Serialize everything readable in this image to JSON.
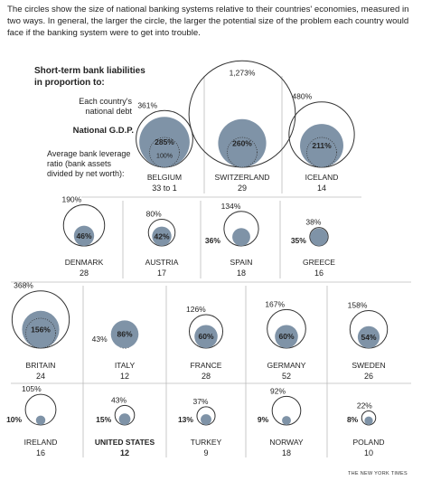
{
  "intro": "The circles show the size of national banking systems relative to their countries' economies, measured in two ways. In general, the larger the circle, the larger the potential size of the problem each country would face if the banking system were to get into trouble.",
  "legend": {
    "title": "Short-term bank liabilities in proportion to:",
    "debt_label": "Each country's national debt",
    "gdp_label": "National G.D.P.",
    "leverage_label": "Average bank leverage ratio (bank assets divided by net worth):"
  },
  "credit": "THE NEW YORK TIMES",
  "colors": {
    "fill": "#7f93a7",
    "outline": "#333333",
    "rule": "#bbbbbb"
  },
  "chart_data": {
    "type": "proportional-circles",
    "countries": [
      {
        "name": "BELGIUM",
        "debt": "361%",
        "gdp": "285%",
        "ref": "100%",
        "leverage": "33 to 1",
        "debt_v": 361,
        "gdp_v": 285
      },
      {
        "name": "SWITZERLAND",
        "debt": "1,273%",
        "gdp": "260%",
        "leverage": "29",
        "debt_v": 1273,
        "gdp_v": 260
      },
      {
        "name": "ICELAND",
        "debt": "480%",
        "gdp": "211%",
        "leverage": "14",
        "debt_v": 480,
        "gdp_v": 211
      },
      {
        "name": "DENMARK",
        "debt": "190%",
        "gdp": "46%",
        "leverage": "28",
        "debt_v": 190,
        "gdp_v": 46
      },
      {
        "name": "AUSTRIA",
        "debt": "80%",
        "gdp": "42%",
        "leverage": "17",
        "debt_v": 80,
        "gdp_v": 42
      },
      {
        "name": "SPAIN",
        "debt": "134%",
        "gdp": "36%",
        "leverage": "18",
        "debt_v": 134,
        "gdp_v": 36
      },
      {
        "name": "GREECE",
        "debt": "38%",
        "gdp": "35%",
        "leverage": "16",
        "debt_v": 38,
        "gdp_v": 35
      },
      {
        "name": "BRITAIN",
        "debt": "368%",
        "gdp": "156%",
        "leverage": "24",
        "debt_v": 368,
        "gdp_v": 156
      },
      {
        "name": "ITALY",
        "debt": "43%",
        "gdp": "86%",
        "leverage": "12",
        "debt_v": 43,
        "gdp_v": 86
      },
      {
        "name": "FRANCE",
        "debt": "126%",
        "gdp": "60%",
        "leverage": "28",
        "debt_v": 126,
        "gdp_v": 60
      },
      {
        "name": "GERMANY",
        "debt": "167%",
        "gdp": "60%",
        "leverage": "52",
        "debt_v": 167,
        "gdp_v": 60
      },
      {
        "name": "SWEDEN",
        "debt": "158%",
        "gdp": "54%",
        "leverage": "26",
        "debt_v": 158,
        "gdp_v": 54
      },
      {
        "name": "IRELAND",
        "debt": "105%",
        "gdp": "10%",
        "leverage": "16",
        "debt_v": 105,
        "gdp_v": 10
      },
      {
        "name": "UNITED STATES",
        "debt": "43%",
        "gdp": "15%",
        "leverage": "12",
        "debt_v": 43,
        "gdp_v": 15,
        "highlight": true
      },
      {
        "name": "TURKEY",
        "debt": "37%",
        "gdp": "13%",
        "leverage": "9",
        "debt_v": 37,
        "gdp_v": 13
      },
      {
        "name": "NORWAY",
        "debt": "92%",
        "gdp": "9%",
        "leverage": "18",
        "debt_v": 92,
        "gdp_v": 9
      },
      {
        "name": "POLAND",
        "debt": "22%",
        "gdp": "8%",
        "leverage": "10",
        "debt_v": 22,
        "gdp_v": 8
      }
    ]
  }
}
